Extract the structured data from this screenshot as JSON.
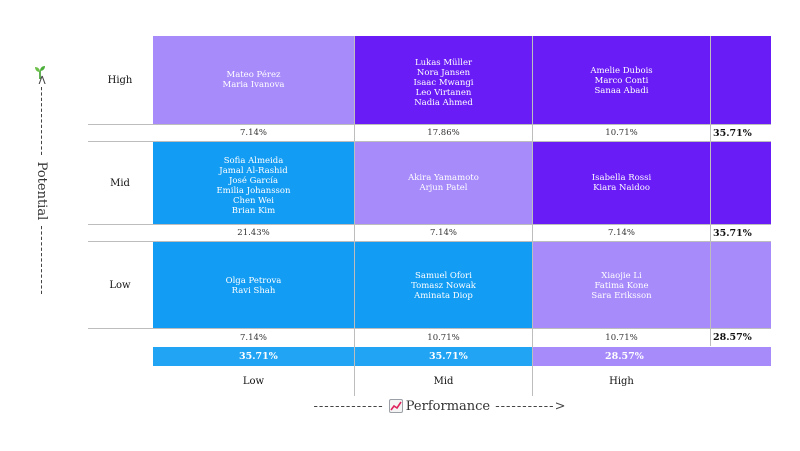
{
  "axes": {
    "y_title": "Potential",
    "x_title": "Performance",
    "y_icon": "sprout-icon",
    "x_icon": "chart-increasing-icon"
  },
  "colors": {
    "light_purple": "#a78bfa",
    "deep_purple": "#6a1cf6",
    "blue": "#129cf3",
    "light_blue_total": "#20a4f3",
    "purple_total": "#a78bfa"
  },
  "chart_data": {
    "type": "table",
    "rows": [
      "High",
      "Mid",
      "Low"
    ],
    "columns": [
      "Low",
      "Mid",
      "High"
    ],
    "cells": {
      "High": {
        "Low": {
          "names": [
            "Mateo Pérez",
            "Maria Ivanova"
          ],
          "pct": "7.14%"
        },
        "Mid": {
          "names": [
            "Lukas Müller",
            "Nora Jansen",
            "Isaac Mwangi",
            "Leo Virtanen",
            "Nadia Ahmed"
          ],
          "pct": "17.86%"
        },
        "High": {
          "names": [
            "Amelie Dubois",
            "Marco Conti",
            "Sanaa Abadi"
          ],
          "pct": "10.71%"
        }
      },
      "Mid": {
        "Low": {
          "names": [
            "Sofia Almeida",
            "Jamal Al-Rashid",
            "José García",
            "Emilia Johansson",
            "Chen Wei",
            "Brian Kim"
          ],
          "pct": "21.43%"
        },
        "Mid": {
          "names": [
            "Akira Yamamoto",
            "Arjun Patel"
          ],
          "pct": "7.14%"
        },
        "High": {
          "names": [
            "Isabella Rossi",
            "Kiara Naidoo"
          ],
          "pct": "7.14%"
        }
      },
      "Low": {
        "Low": {
          "names": [
            "Olga Petrova",
            "Ravi Shah"
          ],
          "pct": "7.14%"
        },
        "Mid": {
          "names": [
            "Samuel Ofori",
            "Tomasz Nowak",
            "Aminata Diop"
          ],
          "pct": "10.71%"
        },
        "High": {
          "names": [
            "Xiaojie Li",
            "Fatima Kone",
            "Sara Eriksson"
          ],
          "pct": "10.71%"
        }
      }
    },
    "row_totals": {
      "High": "35.71%",
      "Mid": "35.71%",
      "Low": "28.57%"
    },
    "column_totals": {
      "Low": "35.71%",
      "Mid": "35.71%",
      "High": "28.57%"
    }
  }
}
